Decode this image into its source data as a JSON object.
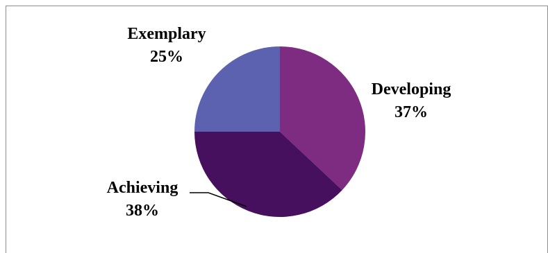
{
  "chart_data": {
    "type": "pie",
    "title": "",
    "start_angle_deg": 0,
    "direction": "clockwise",
    "slices": [
      {
        "name": "Developing",
        "value": 37,
        "value_label": "37%",
        "color": "#7e2c82"
      },
      {
        "name": "Achieving",
        "value": 38,
        "value_label": "38%",
        "color": "#46105e"
      },
      {
        "name": "Exemplary",
        "value": 25,
        "value_label": "25%",
        "color": "#5c62b0"
      }
    ],
    "legend": "none"
  }
}
